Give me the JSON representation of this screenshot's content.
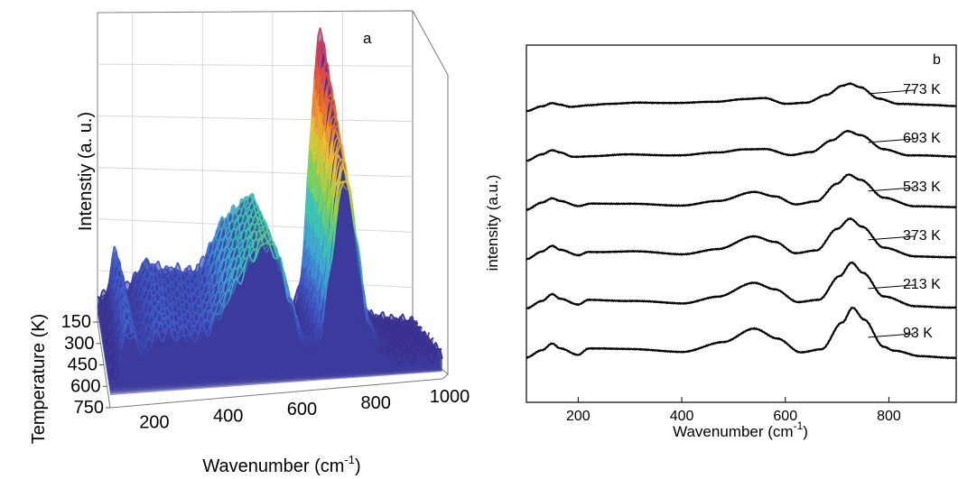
{
  "chart_data": [
    {
      "panel": "a",
      "type": "3d-waterfall",
      "xlabel": "Wavenumber (cm",
      "xlabel_sup": "-1",
      "xlabel_tail": ")",
      "ylabel": "Intenstiy (a. u.)",
      "zlabel": "Temperature (K)",
      "x_ticks": [
        "200",
        "400",
        "600",
        "800",
        "1000"
      ],
      "z_ticks": [
        "150",
        "300",
        "450",
        "600",
        "750"
      ],
      "xlim": [
        100,
        1000
      ],
      "zlim": [
        93,
        773
      ],
      "colormap": [
        "#3b2f8f",
        "#3e5bc9",
        "#3fa0d8",
        "#3cc7b0",
        "#8fd34a",
        "#f1c232",
        "#ee6a2a",
        "#d93c5a"
      ],
      "peaks": [
        {
          "center": 150,
          "height": 0.16,
          "width": 14
        },
        {
          "center": 230,
          "height": 0.1,
          "width": 30
        },
        {
          "center": 320,
          "height": 0.12,
          "width": 55
        },
        {
          "center": 460,
          "height": 0.28,
          "width": 45
        },
        {
          "center": 545,
          "height": 0.34,
          "width": 38
        },
        {
          "center": 735,
          "height": 1.0,
          "width": 28
        },
        {
          "center": 800,
          "height": 0.06,
          "width": 40
        }
      ]
    },
    {
      "panel": "b",
      "type": "line",
      "xlabel": "Wavenumber (cm",
      "xlabel_sup": "-1",
      "xlabel_tail": ")",
      "ylabel": "intensity (a.u.)",
      "x_ticks": [
        200,
        400,
        600,
        800
      ],
      "xlim": [
        100,
        930
      ],
      "series": [
        {
          "name": "773 K",
          "points": [
            [
              100,
              0.12
            ],
            [
              130,
              0.26
            ],
            [
              150,
              0.36
            ],
            [
              165,
              0.32
            ],
            [
              185,
              0.26
            ],
            [
              220,
              0.3
            ],
            [
              260,
              0.33
            ],
            [
              320,
              0.38
            ],
            [
              400,
              0.36
            ],
            [
              460,
              0.4
            ],
            [
              520,
              0.48
            ],
            [
              560,
              0.5
            ],
            [
              600,
              0.34
            ],
            [
              640,
              0.38
            ],
            [
              680,
              0.6
            ],
            [
              710,
              0.86
            ],
            [
              725,
              0.92
            ],
            [
              745,
              0.82
            ],
            [
              780,
              0.5
            ],
            [
              820,
              0.34
            ],
            [
              880,
              0.3
            ],
            [
              930,
              0.28
            ]
          ]
        },
        {
          "name": "693 K",
          "points": [
            [
              100,
              0.1
            ],
            [
              130,
              0.28
            ],
            [
              150,
              0.4
            ],
            [
              165,
              0.34
            ],
            [
              190,
              0.22
            ],
            [
              230,
              0.24
            ],
            [
              300,
              0.28
            ],
            [
              400,
              0.26
            ],
            [
              470,
              0.34
            ],
            [
              520,
              0.44
            ],
            [
              560,
              0.44
            ],
            [
              610,
              0.26
            ],
            [
              650,
              0.36
            ],
            [
              690,
              0.7
            ],
            [
              720,
              0.96
            ],
            [
              745,
              0.84
            ],
            [
              790,
              0.44
            ],
            [
              840,
              0.26
            ],
            [
              930,
              0.22
            ]
          ]
        },
        {
          "name": "533 K",
          "points": [
            [
              100,
              0.1
            ],
            [
              130,
              0.3
            ],
            [
              150,
              0.42
            ],
            [
              165,
              0.34
            ],
            [
              200,
              0.2
            ],
            [
              225,
              0.28
            ],
            [
              300,
              0.26
            ],
            [
              400,
              0.22
            ],
            [
              470,
              0.34
            ],
            [
              540,
              0.62
            ],
            [
              580,
              0.48
            ],
            [
              620,
              0.24
            ],
            [
              660,
              0.34
            ],
            [
              700,
              0.86
            ],
            [
              722,
              1.12
            ],
            [
              745,
              0.96
            ],
            [
              790,
              0.44
            ],
            [
              850,
              0.2
            ],
            [
              930,
              0.16
            ]
          ]
        },
        {
          "name": "373 K",
          "points": [
            [
              100,
              0.08
            ],
            [
              130,
              0.3
            ],
            [
              150,
              0.46
            ],
            [
              165,
              0.34
            ],
            [
              200,
              0.18
            ],
            [
              220,
              0.28
            ],
            [
              300,
              0.3
            ],
            [
              400,
              0.22
            ],
            [
              470,
              0.36
            ],
            [
              540,
              0.74
            ],
            [
              580,
              0.58
            ],
            [
              620,
              0.24
            ],
            [
              660,
              0.32
            ],
            [
              700,
              0.96
            ],
            [
              725,
              1.26
            ],
            [
              748,
              1.02
            ],
            [
              790,
              0.4
            ],
            [
              850,
              0.16
            ],
            [
              930,
              0.12
            ]
          ]
        },
        {
          "name": "213 K",
          "points": [
            [
              100,
              0.06
            ],
            [
              130,
              0.28
            ],
            [
              150,
              0.48
            ],
            [
              165,
              0.34
            ],
            [
              200,
              0.16
            ],
            [
              220,
              0.3
            ],
            [
              300,
              0.28
            ],
            [
              400,
              0.2
            ],
            [
              470,
              0.4
            ],
            [
              540,
              0.8
            ],
            [
              580,
              0.62
            ],
            [
              625,
              0.24
            ],
            [
              665,
              0.3
            ],
            [
              705,
              1.0
            ],
            [
              728,
              1.4
            ],
            [
              750,
              1.1
            ],
            [
              790,
              0.4
            ],
            [
              850,
              0.12
            ],
            [
              930,
              0.08
            ]
          ]
        },
        {
          "name": "93 K",
          "points": [
            [
              100,
              0.04
            ],
            [
              130,
              0.26
            ],
            [
              150,
              0.46
            ],
            [
              165,
              0.32
            ],
            [
              200,
              0.12
            ],
            [
              220,
              0.3
            ],
            [
              300,
              0.3
            ],
            [
              400,
              0.2
            ],
            [
              480,
              0.5
            ],
            [
              540,
              0.88
            ],
            [
              585,
              0.6
            ],
            [
              630,
              0.2
            ],
            [
              670,
              0.28
            ],
            [
              710,
              1.06
            ],
            [
              730,
              1.5
            ],
            [
              752,
              1.16
            ],
            [
              790,
              0.36
            ],
            [
              810,
              0.24
            ],
            [
              860,
              0.08
            ],
            [
              930,
              0.04
            ]
          ]
        }
      ]
    }
  ]
}
